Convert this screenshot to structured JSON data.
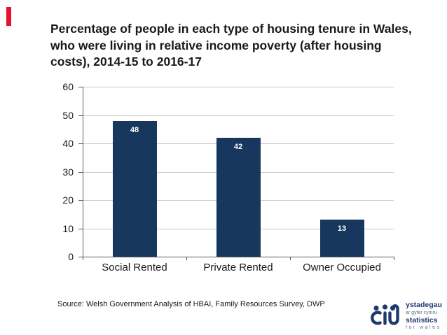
{
  "slide": {
    "accent_color": "#E8112D",
    "title_lines": [
      "Percentage of people in each type of housing tenure in Wales,",
      "who were living in relative income poverty (after housing",
      "costs), 2014-15 to 2016-17"
    ],
    "source": "Source: Welsh Government Analysis of HBAI, Family Resources Survey, DWP"
  },
  "chart_data": {
    "type": "bar",
    "title": "Percentage of people in each type of housing tenure in Wales, who were living in relative income poverty (after housing costs), 2014-15 to 2016-17",
    "categories": [
      "Social Rented",
      "Private Rented",
      "Owner Occupied"
    ],
    "values": [
      48,
      42,
      13
    ],
    "bar_labels": [
      "48",
      "42",
      "13"
    ],
    "xlabel": "",
    "ylabel": "",
    "ylim": [
      0,
      60
    ],
    "yticks": [
      0,
      10,
      20,
      30,
      40,
      50,
      60
    ],
    "grid": true,
    "legend": false,
    "bar_color": "#17375E",
    "bar_label_color": "#FFFFFF",
    "gridline_color": "#C8C8C8",
    "axis_color": "#595959"
  },
  "logo": {
    "line1": "ystadegau",
    "line2": "ar gyfer cymru",
    "line3": "statistics",
    "line4": "for wales",
    "color": "#1F3A6E"
  }
}
